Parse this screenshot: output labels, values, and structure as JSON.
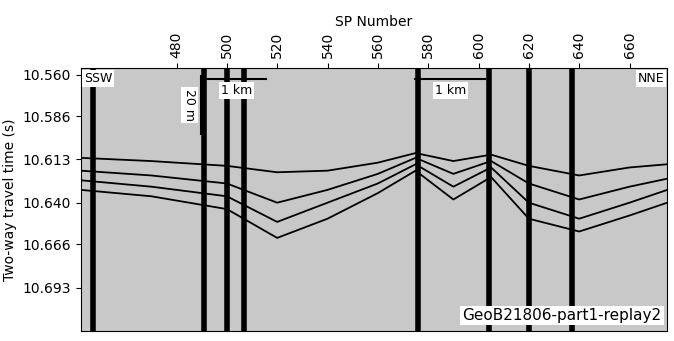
{
  "chart_data": {
    "type": "seismic_profile",
    "xlabel": "SP Number",
    "ylabel": "Two-way travel time (s)",
    "xlim": [
      442,
      675
    ],
    "xticks": [
      480,
      500,
      520,
      540,
      560,
      580,
      600,
      620,
      640,
      660
    ],
    "ylim": [
      10.72,
      10.556
    ],
    "yticks": [
      {
        "value": 10.56,
        "label": "10.560"
      },
      {
        "value": 10.586,
        "label": "10.586"
      },
      {
        "value": 10.613,
        "label": "10.613"
      },
      {
        "value": 10.64,
        "label": "10.640"
      },
      {
        "value": 10.666,
        "label": "10.666"
      },
      {
        "value": 10.693,
        "label": "10.693"
      }
    ],
    "x": [
      442,
      470,
      500,
      520,
      540,
      560,
      575,
      590,
      605,
      620,
      640,
      660,
      675
    ],
    "series": [
      {
        "color": "#000000",
        "values": [
          10.612,
          10.614,
          10.617,
          10.621,
          10.62,
          10.615,
          10.609,
          10.614,
          10.61,
          10.617,
          10.623,
          10.618,
          10.616
        ]
      },
      {
        "color": "#000000",
        "values": [
          10.62,
          10.623,
          10.628,
          10.64,
          10.632,
          10.622,
          10.612,
          10.622,
          10.614,
          10.628,
          10.638,
          10.63,
          10.625
        ]
      },
      {
        "color": "#000000",
        "values": [
          10.626,
          10.63,
          10.636,
          10.652,
          10.64,
          10.628,
          10.616,
          10.63,
          10.618,
          10.64,
          10.65,
          10.64,
          10.632
        ]
      },
      {
        "color": "#000000",
        "values": [
          10.632,
          10.636,
          10.644,
          10.662,
          10.65,
          10.634,
          10.62,
          10.638,
          10.624,
          10.65,
          10.658,
          10.648,
          10.64
        ]
      }
    ],
    "gaps": [
      447,
      491,
      500,
      507,
      576,
      604,
      620,
      637
    ],
    "corner_left": "SSW",
    "corner_right": "NNE",
    "scale_vertical": "20 m",
    "scale_horizontal": [
      "1 km",
      "1 km"
    ],
    "label": "GeoB21806-part1-replay2"
  }
}
